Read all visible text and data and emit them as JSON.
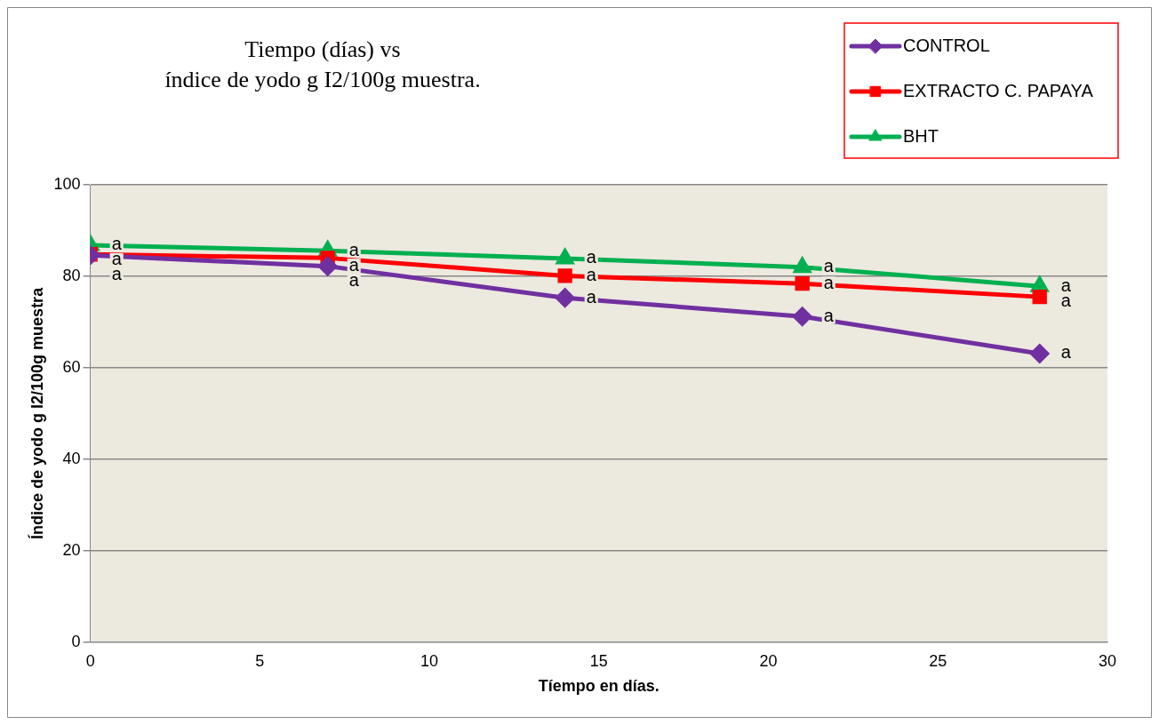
{
  "chart_data": {
    "type": "line",
    "title": "Tiempo (días) vs\níndice de yodo g I2/100g muestra.",
    "xlabel": "Tíempo en días.",
    "ylabel": "Índice de yodo g I2/100g muestra",
    "x": [
      0,
      7,
      14,
      21,
      28
    ],
    "series": [
      {
        "name": "CONTROL",
        "color": "#7030a0",
        "marker": "diamond",
        "values": [
          84.6,
          82.2,
          75.3,
          71.2,
          63.1
        ],
        "value_labels": [
          "a",
          "a",
          "a",
          "a",
          "a"
        ]
      },
      {
        "name": "EXTRACTO C. PAPAYA",
        "color": "#ff0000",
        "marker": "square",
        "values": [
          84.8,
          84.0,
          80.1,
          78.4,
          75.5
        ],
        "value_labels": [
          "a",
          "a",
          "a",
          "a",
          "a"
        ]
      },
      {
        "name": "BHT",
        "color": "#00b050",
        "marker": "triangle",
        "values": [
          86.8,
          85.6,
          83.9,
          82.0,
          77.8
        ],
        "value_labels": [
          "a",
          "a",
          "a",
          "a",
          "a"
        ]
      }
    ],
    "xlim": [
      0,
      30
    ],
    "xticks": [
      0,
      5,
      10,
      15,
      20,
      25,
      30
    ],
    "ylim": [
      0,
      100
    ],
    "yticks": [
      0,
      20,
      40,
      60,
      80,
      100
    ],
    "grid": "y",
    "legend": "top right",
    "line_style": "solid"
  }
}
